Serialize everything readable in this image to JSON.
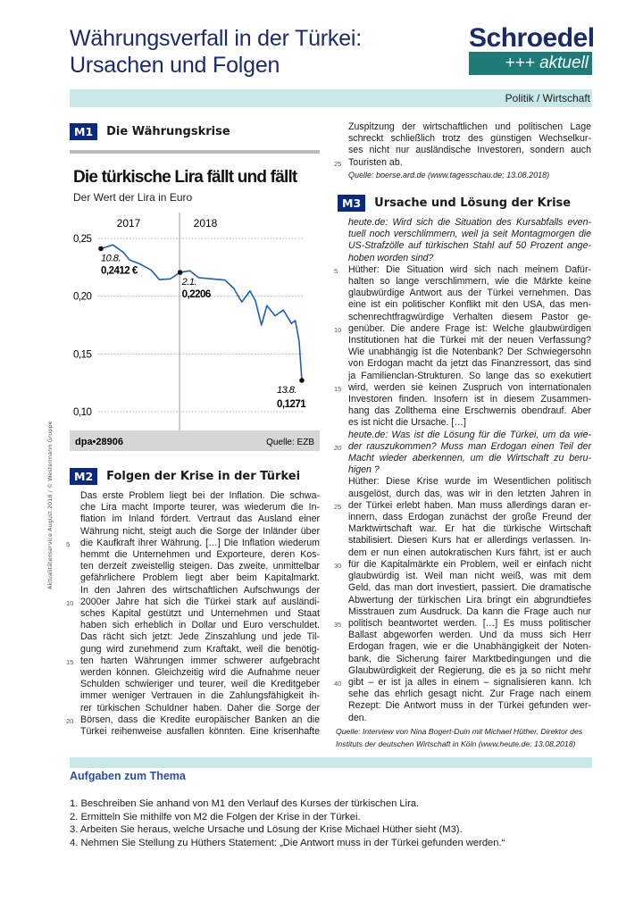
{
  "header": {
    "title_line1": "Währungsverfall in der Türkei:",
    "title_line2": "Ursachen und Folgen",
    "logo_name": "Schroedel",
    "logo_sub": "+++ aktuell",
    "subject": "Politik / Wirtschaft"
  },
  "sidebar_note": "Aktualitätenservice August 2018 / © Westermann Gruppe",
  "m1": {
    "badge": "M1",
    "heading": "Die Währungskrise"
  },
  "chart_data": {
    "type": "line",
    "title": "Die türkische Lira fällt und fällt",
    "subtitle": "Der Wert der Lira in Euro",
    "year_labels": [
      "2017",
      "2018"
    ],
    "yticks": [
      "0,25",
      "0,20",
      "0,15",
      "0,10"
    ],
    "ylim": [
      0.1,
      0.25
    ],
    "grid": true,
    "xlim": [
      "2017-08-10",
      "2018-08-13"
    ],
    "line_color": "#1f5fb0",
    "source_left": "dpa•28906",
    "source_right": "Quelle: EZB",
    "annotations": [
      {
        "date": "2017-08-10",
        "label_date": "10.8.",
        "label_value": "0,2412 €",
        "value": 0.2412
      },
      {
        "date": "2018-01-02",
        "label_date": "2.1.",
        "label_value": "0,2206",
        "value": 0.2206
      },
      {
        "date": "2018-08-13",
        "label_date": "13.8.",
        "label_value": "0,1271",
        "value": 0.1271
      }
    ],
    "series": [
      {
        "x": [
          "2017-08-10",
          "2017-09-01",
          "2017-09-20",
          "2017-10-01",
          "2017-10-20",
          "2017-11-10",
          "2017-11-25",
          "2017-12-15",
          "2018-01-02",
          "2018-01-20",
          "2018-02-05",
          "2018-03-01",
          "2018-03-25",
          "2018-04-10",
          "2018-04-25",
          "2018-05-10",
          "2018-05-20",
          "2018-05-31",
          "2018-06-10",
          "2018-06-25",
          "2018-07-10",
          "2018-07-25",
          "2018-08-01",
          "2018-08-08",
          "2018-08-13"
        ],
        "y": [
          0.2412,
          0.2444,
          0.238,
          0.2315,
          0.228,
          0.2226,
          0.2144,
          0.215,
          0.2206,
          0.222,
          0.216,
          0.215,
          0.214,
          0.207,
          0.195,
          0.2046,
          0.196,
          0.175,
          0.1918,
          0.183,
          0.188,
          0.1764,
          0.179,
          0.161,
          0.1271
        ]
      }
    ]
  },
  "m2": {
    "badge": "M2",
    "heading": "Folgen der Krise in der Türkei",
    "lines": [
      "Das erste Problem liegt bei der Inflation. Die schwa-",
      "che Lira macht Importe teurer, was wiederum die In-",
      "flation im Inland fördert. Vertraut das Ausland einer",
      "Währung nicht, steigt auch die Sorge der Inländer über",
      "die Kaufkraft ihrer Währung. […] Die Inflation wiederum",
      "hemmt die Unternehmen und Exporteure, deren Kos-",
      "ten derzeit zweistellig steigen. Das zweite, unmittelbar",
      "gefährlichere Problem liegt aber beim Kapitalmarkt.",
      "In den Jahren des wirtschaftlichen Aufschwungs der",
      "2000er Jahre hat sich die Türkei stark auf ausländi-",
      "sches Kapital gestützt und Unternehmen und Staat",
      "haben sich erheblich in Dollar und Euro verschuldet.",
      "Das rächt sich jetzt: Jede Zinszahlung und jede Til-",
      "gung wird zunehmend zum Kraftakt, weil die benötig-",
      "ten harten Währungen immer schwerer aufgebracht",
      "werden können. Gleichzeitig wird die Aufnahme neuer",
      "Schulden schwieriger und teurer, weil die Kreditgeber",
      "immer weniger Vertrauen in die Zahlungsfähigkeit ih-",
      "rer türkischen Schuldner haben. Daher die Sorge der",
      "Börsen, dass die Kredite europäischer Banken an die",
      "Türkei reihenweise ausfallen könnten. Eine krisenhafte"
    ],
    "cont_lines": [
      "Zuspitzung der wirtschaftlichen und politischen Lage",
      "schreckt schließlich trotz des günstigen Wechselkur-",
      "ses nicht nur ausländische Investoren, sondern auch",
      "Touristen ab."
    ],
    "source": "Quelle: boerse.ard.de (www.tagesschau.de; 13.08.2018)"
  },
  "m3": {
    "badge": "M3",
    "heading": "Ursache und Lösung der Krise",
    "lines": [
      {
        "t": "heute.de: Wird sich die Situation des Kursabfalls even-",
        "i": true
      },
      {
        "t": "tuell noch verschlimmern, weil ja seit Montagmorgen die",
        "i": true
      },
      {
        "t": "US-Strafzölle auf türkischen Stahl auf 50 Prozent ange-",
        "i": true
      },
      {
        "t": "hoben worden sind?",
        "i": true,
        "last": true
      },
      {
        "t": "Hüther: Die Situation wird sich nach meinem Dafür-"
      },
      {
        "t": "halten so lange verschlimmern, wie die Märkte keine"
      },
      {
        "t": "glaubwürdige Antwort aus der Türkei vernehmen. Das"
      },
      {
        "t": "eine ist ein politischer Konflikt mit den USA, das men-"
      },
      {
        "t": "schenrechtfragwürdige Verhalten diesem Pastor ge-"
      },
      {
        "t": "genüber. Die andere Frage ist: Welche glaubwürdigen"
      },
      {
        "t": "Institutionen hat die Türkei mit der neuen Verfassung?"
      },
      {
        "t": "Wie unabhängig ist die Notenbank? Der Schwiegersohn"
      },
      {
        "t": "von Erdogan macht da jetzt das Finanzressort, das sind"
      },
      {
        "t": "ja Familienclan-Strukturen. So lange das so exekutiert"
      },
      {
        "t": "wird, werden sie keinen Zuspruch von internationalen"
      },
      {
        "t": "Investoren finden. Insofern ist in diesem Zusammen-"
      },
      {
        "t": "hang das Zollthema eine Erschwernis obendrauf. Aber"
      },
      {
        "t": "es ist nicht die Ursache. […]",
        "last": true
      },
      {
        "t": "heute.de: Was ist die Lösung für die Türkei, um da wie-",
        "i": true
      },
      {
        "t": "der rauszukommen? Muss man Erdogan einen Teil der",
        "i": true
      },
      {
        "t": "Macht wieder aberkennen, um die Wirtschaft zu beru-",
        "i": true
      },
      {
        "t": "higen ?",
        "i": true,
        "last": true
      },
      {
        "t": "Hüther: Diese Krise wurde im Wesentlichen politisch"
      },
      {
        "t": "ausgelöst, durch das, was wir in den letzten Jahren in"
      },
      {
        "t": "der Türkei erlebt haben. Man muss allerdings daran er-"
      },
      {
        "t": "innern, dass Erdogan zunächst der große Freund der"
      },
      {
        "t": "Marktwirtschaft war. Er hat die türkische Wirtschaft"
      },
      {
        "t": "stabilisiert. Diesen Kurs hat er allerdings verlassen. In-"
      },
      {
        "t": "dem er nun einen autokratischen Kurs fährt, ist er auch"
      },
      {
        "t": "für die Kapitalmärkte ein Problem, weil er einfach nicht"
      },
      {
        "t": "glaubwürdig ist. Weil man nicht weiß, was mit dem"
      },
      {
        "t": "Geld, das man dort investiert, passiert. Die dramatische"
      },
      {
        "t": "Abwertung der türkischen Lira bringt ein abgrundtiefes"
      },
      {
        "t": "Misstrauen zum Ausdruck. Da kann die Frage auch nur"
      },
      {
        "t": "politisch beantwortet werden. […] Es muss politischer"
      },
      {
        "t": "Ballast abgeworfen werden. Und da muss sich Herr"
      },
      {
        "t": "Erdogan fragen, wie er die Unabhängigkeit der Noten-"
      },
      {
        "t": "bank, die Sicherung fairer Marktbedingungen und die"
      },
      {
        "t": "Glaubwürdigkeit der Regierung, die es ja so nicht mehr"
      },
      {
        "t": "gibt – er ist ja alles in einem – signalisieren kann. Ich"
      },
      {
        "t": "sehe das ehrlich gesagt nicht. Zur Frage nach einem"
      },
      {
        "t": "Rezept: Die Antwort muss in der Türkei gefunden wer-"
      },
      {
        "t": "den.",
        "last": true
      }
    ],
    "source_line1": "Quelle: Interview von Nina Bogert-Duin mit Michael Hüther, Direktor des",
    "source_line2": "Instituts der deutschen Wirtschaft in Köln (www.heute.de; 13.08.2018)"
  },
  "tasks": {
    "heading": "Aufgaben zum Thema",
    "items": [
      "1.  Beschreiben Sie anhand von M1 den Verlauf des Kurses der türkischen Lira.",
      "2.  Ermitteln Sie mithilfe von M2 die Folgen der Krise in der Türkei.",
      "3.  Arbeiten Sie heraus, welche Ursache und Lösung der Krise Michael Hüther sieht (M3).",
      "4.  Nehmen Sie Stellung zu Hüthers Statement: „Die Antwort muss in der Türkei gefunden werden.“"
    ]
  }
}
